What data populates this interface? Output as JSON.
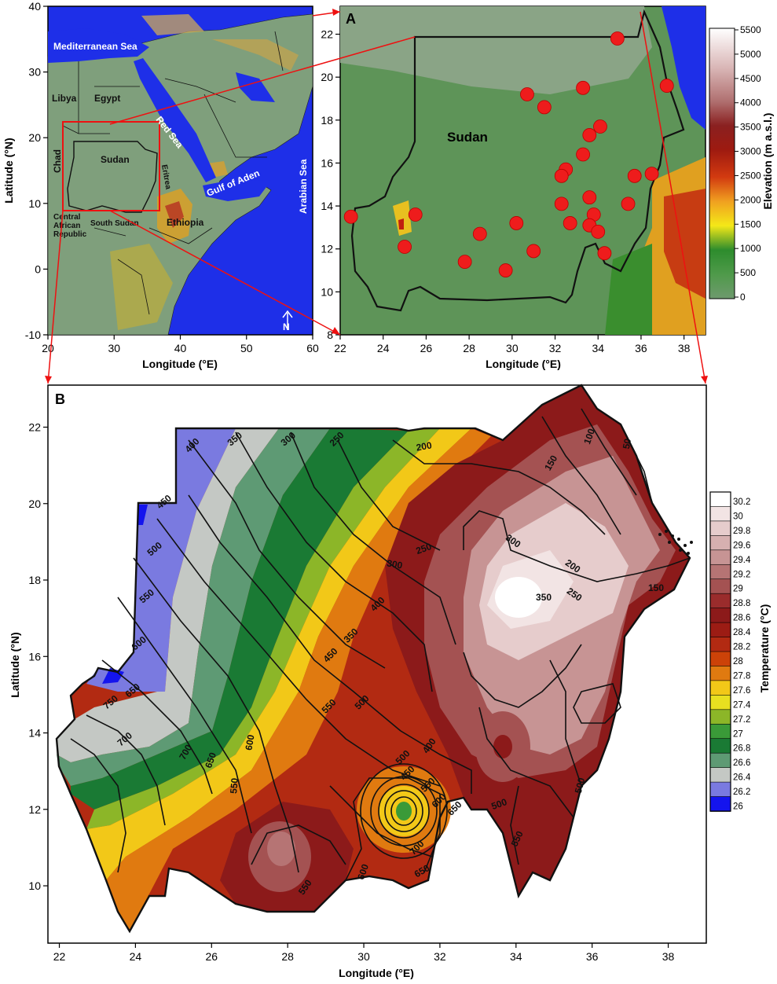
{
  "panel_overview": {
    "x_ticks": [
      "20",
      "30",
      "40",
      "50",
      "60"
    ],
    "y_ticks": [
      "40",
      "30",
      "20",
      "10",
      "0",
      "-10"
    ],
    "xlabel": "Longitude (°E)",
    "ylabel": "Latitude (°N)",
    "labels": {
      "mediterranean": "Mediterranean Sea",
      "libya": "Libya",
      "egypt": "Egypt",
      "red_sea": "Red Sea",
      "chad": "Chad",
      "sudan": "Sudan",
      "gulf_aden": "Gulf of Aden",
      "arabian_sea": "Arabian Sea",
      "car1": "Central",
      "car2": "African",
      "car3": "Republic",
      "south_sudan": "South Sudan",
      "ethiopia": "Ethiopia",
      "eritrea": "Eritrea",
      "north": "N"
    }
  },
  "panel_a": {
    "letter": "A",
    "x_ticks": [
      "22",
      "24",
      "26",
      "28",
      "30",
      "32",
      "34",
      "36",
      "38"
    ],
    "y_ticks": [
      "22",
      "20",
      "18",
      "16",
      "14",
      "12",
      "10",
      "8"
    ],
    "xlabel": "Longitude (°E)",
    "country": "Sudan",
    "stations": [
      {
        "lon": 34.9,
        "lat": 21.8
      },
      {
        "lon": 37.2,
        "lat": 19.6
      },
      {
        "lon": 30.7,
        "lat": 19.2
      },
      {
        "lon": 33.3,
        "lat": 19.5
      },
      {
        "lon": 31.5,
        "lat": 18.6
      },
      {
        "lon": 34.1,
        "lat": 17.7
      },
      {
        "lon": 33.6,
        "lat": 17.3
      },
      {
        "lon": 33.3,
        "lat": 16.4
      },
      {
        "lon": 32.5,
        "lat": 15.7
      },
      {
        "lon": 32.3,
        "lat": 15.4
      },
      {
        "lon": 35.7,
        "lat": 15.4
      },
      {
        "lon": 36.5,
        "lat": 15.5
      },
      {
        "lon": 33.6,
        "lat": 14.4
      },
      {
        "lon": 32.3,
        "lat": 14.1
      },
      {
        "lon": 35.4,
        "lat": 14.1
      },
      {
        "lon": 33.8,
        "lat": 13.6
      },
      {
        "lon": 22.5,
        "lat": 13.5
      },
      {
        "lon": 25.5,
        "lat": 13.6
      },
      {
        "lon": 32.7,
        "lat": 13.2
      },
      {
        "lon": 33.6,
        "lat": 13.1
      },
      {
        "lon": 30.2,
        "lat": 13.2
      },
      {
        "lon": 34.0,
        "lat": 12.8
      },
      {
        "lon": 28.5,
        "lat": 12.7
      },
      {
        "lon": 25.0,
        "lat": 12.1
      },
      {
        "lon": 31.0,
        "lat": 11.9
      },
      {
        "lon": 34.3,
        "lat": 11.8
      },
      {
        "lon": 27.8,
        "lat": 11.4
      },
      {
        "lon": 29.7,
        "lat": 11.0
      }
    ]
  },
  "elevation_legend": {
    "title": "Elevation (m a.s.l.)",
    "ticks": [
      "5500",
      "5000",
      "4500",
      "4000",
      "3500",
      "3000",
      "2500",
      "2000",
      "1500",
      "1000",
      "500",
      "0"
    ]
  },
  "panel_b": {
    "letter": "B",
    "x_ticks": [
      "22",
      "24",
      "26",
      "28",
      "30",
      "32",
      "34",
      "36",
      "38"
    ],
    "y_ticks": [
      "22",
      "20",
      "18",
      "16",
      "14",
      "12",
      "10"
    ],
    "xlabel": "Longitude (°E)",
    "ylabel": "Latitude (°N)",
    "contour_labels": [
      {
        "t": "400"
      },
      {
        "t": "350"
      },
      {
        "t": "300"
      },
      {
        "t": "250"
      },
      {
        "t": "200"
      },
      {
        "t": "150"
      },
      {
        "t": "100"
      },
      {
        "t": "50"
      },
      {
        "t": "450"
      },
      {
        "t": "500"
      },
      {
        "t": "550"
      },
      {
        "t": "600"
      },
      {
        "t": "650"
      },
      {
        "t": "700"
      },
      {
        "t": "750"
      },
      {
        "t": "250"
      },
      {
        "t": "300"
      },
      {
        "t": "200"
      },
      {
        "t": "250"
      },
      {
        "t": "150"
      },
      {
        "t": "350"
      },
      {
        "t": "300"
      },
      {
        "t": "400"
      },
      {
        "t": "350"
      },
      {
        "t": "450"
      },
      {
        "t": "500"
      },
      {
        "t": "550"
      },
      {
        "t": "400"
      },
      {
        "t": "450"
      },
      {
        "t": "500"
      },
      {
        "t": "550"
      },
      {
        "t": "600"
      },
      {
        "t": "650"
      },
      {
        "t": "700"
      },
      {
        "t": "650"
      },
      {
        "t": "600"
      },
      {
        "t": "550"
      },
      {
        "t": "700"
      },
      {
        "t": "650"
      },
      {
        "t": "550"
      },
      {
        "t": "600"
      },
      {
        "t": "500"
      },
      {
        "t": "550"
      },
      {
        "t": "500"
      }
    ]
  },
  "temperature_legend": {
    "title": "Temperature (°C)",
    "ticks": [
      "30.2",
      "30",
      "29.8",
      "29.6",
      "29.4",
      "29.2",
      "29",
      "28.8",
      "28.6",
      "28.4",
      "28.2",
      "28",
      "27.8",
      "27.6",
      "27.4",
      "27.2",
      "27",
      "26.8",
      "26.6",
      "26.4",
      "26.2",
      "26"
    ],
    "colors": [
      "#ffffff",
      "#f2e4e4",
      "#e6cccc",
      "#d6b0b0",
      "#c79494",
      "#b67474",
      "#a45252",
      "#9a2c2c",
      "#8c1a1a",
      "#9c1c14",
      "#b22a12",
      "#cc4208",
      "#e07a10",
      "#f2c818",
      "#e8e020",
      "#8cb628",
      "#3a9a38",
      "#1a7a34",
      "#5e9a74",
      "#c4c8c4",
      "#7a7ae0",
      "#1414ee"
    ]
  }
}
